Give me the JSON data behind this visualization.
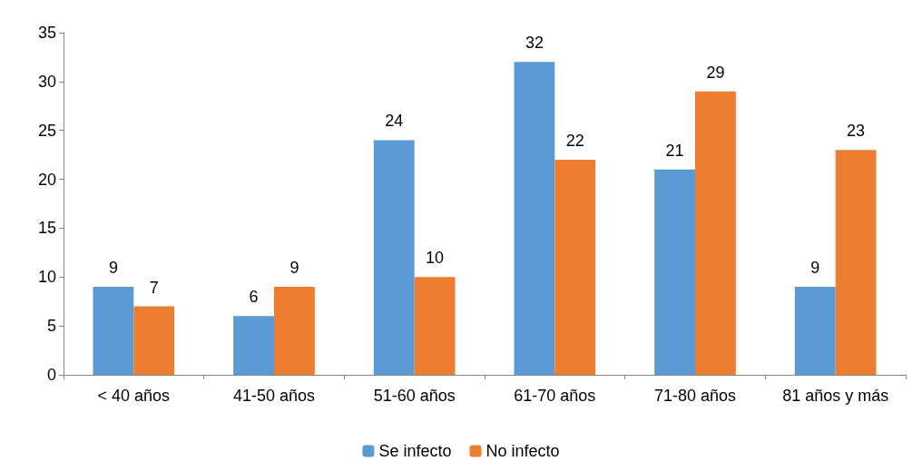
{
  "chart_data": {
    "type": "bar",
    "categories": [
      "< 40 años",
      "41-50 años",
      "51-60 años",
      "61-70 años",
      "71-80 años",
      "81 años y más"
    ],
    "series": [
      {
        "name": "Se infecto",
        "color": "#5b9bd5",
        "values": [
          9,
          6,
          24,
          32,
          21,
          9
        ]
      },
      {
        "name": "No infecto",
        "color": "#ed7d31",
        "values": [
          7,
          9,
          10,
          22,
          29,
          23
        ]
      }
    ],
    "ylim": [
      0,
      35
    ],
    "yticks": [
      0,
      5,
      10,
      15,
      20,
      25,
      30,
      35
    ],
    "data_labels": true,
    "legend": "bottom",
    "grid": false
  }
}
